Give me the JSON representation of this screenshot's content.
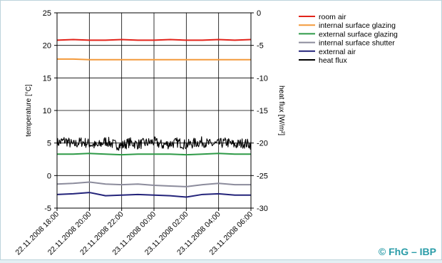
{
  "chart_data": {
    "type": "line",
    "title": "",
    "ylabel": "temperature [°C]",
    "y2label": "heat flux [W/m²]",
    "ylim": [
      -5,
      25
    ],
    "y2lim": [
      -30,
      0
    ],
    "yticks": [
      "25",
      "20",
      "15",
      "10",
      "5",
      "0",
      "-5"
    ],
    "y2ticks": [
      "0",
      "-5",
      "-10",
      "-15",
      "-20",
      "-25",
      "-30"
    ],
    "xticks": [
      "22.11.2008 18:00",
      "22.11.2008 20:00",
      "22.11.2008 22:00",
      "23.11.2008 00:00",
      "23.11.2008 02:00",
      "23.11.2008 04:00",
      "23.11.2008 06:00"
    ],
    "xlim_hours": [
      0,
      12
    ],
    "grid": true,
    "legend_position": "top-right",
    "series": [
      {
        "name": "room air",
        "axis": "left",
        "color": "#e2231a",
        "x": [
          0,
          1,
          2,
          3,
          4,
          5,
          6,
          7,
          8,
          9,
          10,
          11,
          12
        ],
        "y": [
          20.8,
          20.9,
          20.8,
          20.8,
          20.9,
          20.8,
          20.8,
          20.9,
          20.8,
          20.8,
          20.9,
          20.8,
          20.9
        ]
      },
      {
        "name": "internal surface glazing",
        "axis": "left",
        "color": "#f39a3b",
        "x": [
          0,
          1,
          2,
          3,
          4,
          5,
          6,
          7,
          8,
          9,
          10,
          11,
          12
        ],
        "y": [
          17.9,
          17.9,
          17.8,
          17.8,
          17.8,
          17.8,
          17.8,
          17.8,
          17.8,
          17.8,
          17.8,
          17.8,
          17.8
        ]
      },
      {
        "name": "external surface glazing",
        "axis": "left",
        "color": "#2e9a47",
        "x": [
          0,
          1,
          2,
          3,
          4,
          5,
          6,
          7,
          8,
          9,
          10,
          11,
          12
        ],
        "y": [
          3.3,
          3.3,
          3.4,
          3.3,
          3.2,
          3.3,
          3.3,
          3.3,
          3.2,
          3.3,
          3.4,
          3.3,
          3.3
        ]
      },
      {
        "name": "internal surface shutter",
        "axis": "left",
        "color": "#8c8c9c",
        "x": [
          0,
          1,
          2,
          3,
          4,
          5,
          6,
          7,
          8,
          9,
          10,
          11,
          12
        ],
        "y": [
          -1.3,
          -1.2,
          -1.0,
          -1.3,
          -1.4,
          -1.3,
          -1.5,
          -1.6,
          -1.7,
          -1.4,
          -1.2,
          -1.4,
          -1.4
        ]
      },
      {
        "name": "external air",
        "axis": "left",
        "color": "#23237a",
        "x": [
          0,
          1,
          2,
          3,
          4,
          5,
          6,
          7,
          8,
          9,
          10,
          11,
          12
        ],
        "y": [
          -2.9,
          -2.8,
          -2.6,
          -3.1,
          -3.0,
          -2.9,
          -3.0,
          -3.1,
          -3.3,
          -2.9,
          -2.8,
          -3.0,
          -3.0
        ]
      },
      {
        "name": "heat flux",
        "axis": "right",
        "color": "#000000",
        "x": [
          0,
          0.5,
          1,
          1.5,
          2,
          2.5,
          3,
          3.5,
          4,
          4.5,
          5,
          5.5,
          6,
          6.5,
          7,
          7.5,
          8,
          8.5,
          9,
          9.5,
          10,
          10.5,
          11,
          11.5,
          12
        ],
        "y": [
          -20.0,
          -19.6,
          -20.3,
          -19.8,
          -20.1,
          -20.5,
          -19.7,
          -20.2,
          -20.4,
          -19.9,
          -20.2,
          -20.0,
          -19.8,
          -20.3,
          -20.1,
          -19.9,
          -20.3,
          -20.0,
          -19.8,
          -20.2,
          -20.1,
          -19.9,
          -20.3,
          -20.0,
          -20.2
        ],
        "fluctuation": 0.8
      }
    ]
  },
  "copyright": "© FhG – IBP"
}
